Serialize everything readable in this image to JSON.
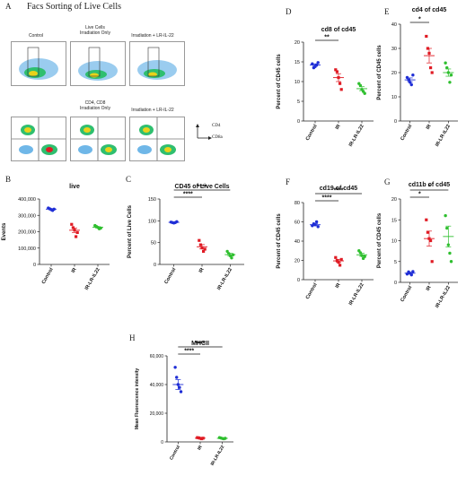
{
  "panel_letters": [
    "A",
    "B",
    "C",
    "D",
    "E",
    "F",
    "G",
    "H"
  ],
  "facs": {
    "title": "Facs Sorting of Live Cells",
    "row1_labels": [
      "Control",
      "Live Cells\nIrradiation Only",
      "Irradiation + LR-IL-22"
    ],
    "row2_labels": [
      "",
      "CD4, CD8\nIrradiation Only",
      "Irradiation + LR-IL-22"
    ],
    "axis_cd4": "CD4",
    "axis_cd8a": "CD8a"
  },
  "colors": {
    "control": "#1f2ed6",
    "ir": "#e01b24",
    "ir_lr": "#2fbf2f",
    "axis": "#222222"
  },
  "chart_data": [
    {
      "id": "B",
      "type": "scatter",
      "title": "live",
      "xlabel": "",
      "ylabel": "Events",
      "categories": [
        "Control",
        "IR",
        "IR-LR-IL22"
      ],
      "yticks": [
        "0",
        "100,000",
        "200,000",
        "300,000",
        "400,000"
      ],
      "ylim": [
        0,
        400000
      ],
      "points": [
        [
          345000,
          340000,
          335000,
          330000,
          338000
        ],
        [
          245000,
          225000,
          210000,
          170000,
          195000
        ],
        [
          238000,
          232000,
          226000,
          218000,
          222000
        ]
      ],
      "means": [
        338000,
        209000,
        227000
      ],
      "sems": [
        3000,
        14000,
        4000
      ],
      "significance": []
    },
    {
      "id": "C",
      "type": "scatter",
      "title": "CD45 of Live Cells",
      "xlabel": "",
      "ylabel": "Percent of Live Cells",
      "categories": [
        "Control",
        "IR",
        "IR-LR-IL22"
      ],
      "yticks": [
        "0",
        "50",
        "100",
        "150"
      ],
      "ylim": [
        0,
        150
      ],
      "points": [
        [
          97,
          96,
          95,
          96,
          98
        ],
        [
          55,
          45,
          38,
          30,
          35
        ],
        [
          30,
          25,
          20,
          15,
          22
        ]
      ],
      "means": [
        96.5,
        40.5,
        22.5
      ],
      "sems": [
        0.6,
        5,
        3
      ],
      "significance": [
        {
          "from": 0,
          "to": 1,
          "label": "****"
        },
        {
          "from": 0,
          "to": 2,
          "label": "****"
        }
      ]
    },
    {
      "id": "D",
      "type": "scatter",
      "title": "cd8 of cd45",
      "xlabel": "",
      "ylabel": "Percent of CD45 cells",
      "categories": [
        "Control",
        "IR",
        "IR-LR-IL22"
      ],
      "yticks": [
        "0",
        "5",
        "10",
        "15",
        "20"
      ],
      "ylim": [
        0,
        20
      ],
      "points": [
        [
          14.5,
          13.5,
          13.8,
          14.2,
          14.8
        ],
        [
          13,
          12.5,
          11,
          9.5,
          8
        ],
        [
          9.5,
          9,
          8,
          7.5,
          7
        ]
      ],
      "means": [
        14.2,
        11.0,
        8.2
      ],
      "sems": [
        0.3,
        1.0,
        0.5
      ],
      "significance": [
        {
          "from": 0,
          "to": 1,
          "label": "**"
        }
      ]
    },
    {
      "id": "E",
      "type": "scatter",
      "title": "cd4 of cd45",
      "xlabel": "",
      "ylabel": "Percent of CD45 cells",
      "categories": [
        "Control",
        "IR",
        "IR-LR-IL22"
      ],
      "yticks": [
        "0",
        "10",
        "20",
        "30",
        "40"
      ],
      "ylim": [
        0,
        40
      ],
      "points": [
        [
          18,
          17,
          16,
          15,
          19
        ],
        [
          35,
          30,
          28,
          22,
          20
        ],
        [
          24,
          22,
          20,
          16,
          19
        ]
      ],
      "means": [
        17,
        27,
        20
      ],
      "sems": [
        0.8,
        3,
        1.5
      ],
      "significance": [
        {
          "from": 0,
          "to": 1,
          "label": "*"
        }
      ]
    },
    {
      "id": "F",
      "type": "scatter",
      "title": "cd19 of cd45",
      "xlabel": "",
      "ylabel": "Percent of CD45 cells",
      "categories": [
        "Control",
        "IR",
        "IR-LR-IL22"
      ],
      "yticks": [
        "0",
        "20",
        "40",
        "60",
        "80"
      ],
      "ylim": [
        0,
        80
      ],
      "points": [
        [
          56,
          58,
          57,
          60,
          55
        ],
        [
          23,
          20,
          18,
          15,
          21
        ],
        [
          30,
          28,
          25,
          22,
          24
        ]
      ],
      "means": [
        57,
        19.5,
        25.8
      ],
      "sems": [
        1,
        1.5,
        1.5
      ],
      "significance": [
        {
          "from": 0,
          "to": 1,
          "label": "****"
        },
        {
          "from": 0,
          "to": 2,
          "label": "****"
        }
      ]
    },
    {
      "id": "G",
      "type": "scatter",
      "title": "cd11b of cd45",
      "xlabel": "",
      "ylabel": "Percent of CD45 cells",
      "categories": [
        "Control",
        "IR",
        "IR-LR-IL22"
      ],
      "yticks": [
        "0",
        "5",
        "10",
        "15",
        "20"
      ],
      "ylim": [
        0,
        20
      ],
      "points": [
        [
          2,
          2.5,
          2.2,
          1.8,
          2.6
        ],
        [
          15,
          12,
          10.5,
          10,
          5
        ],
        [
          16,
          13,
          9,
          7,
          5
        ]
      ],
      "means": [
        2.2,
        10.5,
        11
      ],
      "sems": [
        0.2,
        1.8,
        2.5
      ],
      "significance": [
        {
          "from": 0,
          "to": 1,
          "label": "*"
        },
        {
          "from": 0,
          "to": 2,
          "label": "*"
        }
      ]
    },
    {
      "id": "H",
      "type": "scatter",
      "title": "MHCII",
      "xlabel": "",
      "ylabel": "Mean Fluorescence intensity",
      "categories": [
        "Control",
        "IR",
        "IR-LR-IL22"
      ],
      "yticks": [
        "0",
        "20,000",
        "40,000",
        "60,000"
      ],
      "ylim": [
        0,
        60000
      ],
      "points": [
        [
          52000,
          45000,
          40000,
          38000,
          35000
        ],
        [
          3000,
          2800,
          2500,
          2200,
          2600
        ],
        [
          3000,
          2700,
          2400,
          2200,
          2500
        ]
      ],
      "means": [
        40000,
        2600,
        2500
      ],
      "sems": [
        3500,
        150,
        150
      ],
      "significance": [
        {
          "from": 0,
          "to": 1,
          "label": "****"
        },
        {
          "from": 0,
          "to": 2,
          "label": "****"
        }
      ]
    }
  ]
}
